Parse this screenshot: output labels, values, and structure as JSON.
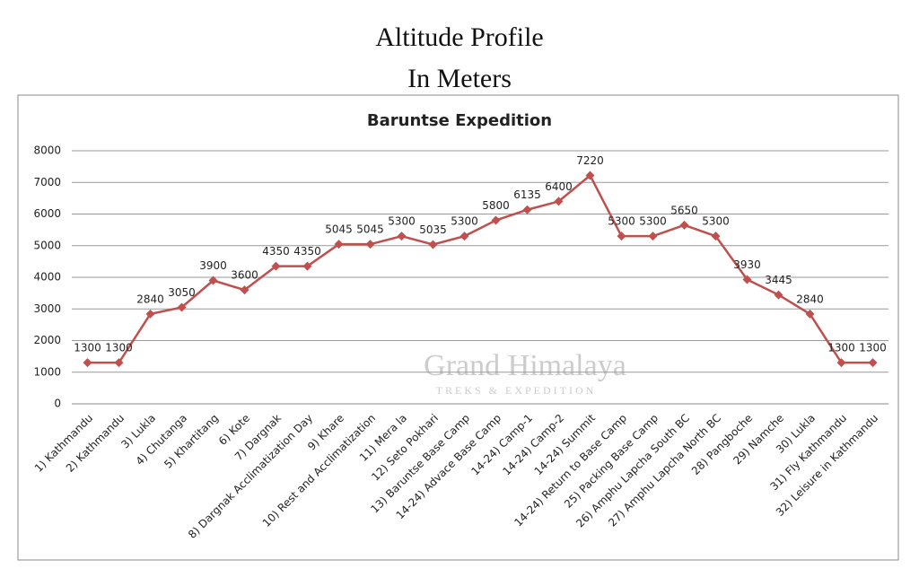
{
  "header": {
    "title": "Altitude Profile",
    "subtitle": "In Meters"
  },
  "watermark": {
    "name": "Grand Himalaya",
    "tagline": "TREKS & EXPEDITION"
  },
  "chart_data": {
    "type": "line",
    "title": "Baruntse Expedition",
    "categories": [
      "1) Kathmandu",
      "2) Kathmandu",
      "3) Lukla",
      "4) Chutanga",
      "5) Khartitang",
      "6) Kote",
      "7) Dargnak",
      "8) Dargnak Acclimatization Day",
      "9) Khare",
      "10) Rest and Acclimatization",
      "11) Mera la",
      "12) Seto Pokhari",
      "13) Baruntse Base Camp",
      "14-24) Advace Base Camp",
      "14-24) Camp-1",
      "14-24) Camp-2",
      "14-24) Summit",
      "14-24) Return to Base Camp",
      "25) Packing Base Camp",
      "26) Amphu Lapcha South BC",
      "27) Amphu Lapcha North BC",
      "28) Pangboche",
      "29) Namche",
      "30) Lukla",
      "31) Fly Kathmandu",
      "32) Leisure in Kathmandu"
    ],
    "values": [
      1300,
      1300,
      2840,
      3050,
      3900,
      3600,
      4350,
      4350,
      5045,
      5045,
      5300,
      5035,
      5300,
      5800,
      6135,
      6400,
      7220,
      5300,
      5300,
      5650,
      5300,
      3930,
      3445,
      2840,
      1300,
      1300
    ],
    "color": "#c0504d",
    "ylim": [
      0,
      8000
    ],
    "yticks": [
      0,
      1000,
      2000,
      3000,
      4000,
      5000,
      6000,
      7000,
      8000
    ],
    "grid": true
  }
}
